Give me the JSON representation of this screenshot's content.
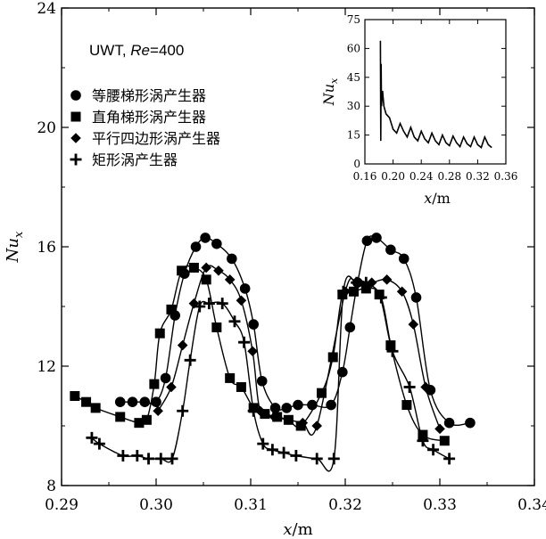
{
  "chart_data": {
    "type": "line",
    "annotation": {
      "prefix": "UWT, ",
      "re_italic": "Re",
      "re_value": "=400"
    },
    "xlabel": {
      "var": "x",
      "unit": "/m"
    },
    "ylabel": {
      "base": "Nu",
      "sub": "x"
    },
    "xlim": [
      0.29,
      0.34
    ],
    "ylim": [
      8,
      24
    ],
    "xticks": [
      0.29,
      0.3,
      0.31,
      0.32,
      0.33,
      0.34
    ],
    "xtick_labels": [
      "0.29",
      "0.30",
      "0.31",
      "0.32",
      "0.33",
      "0.34"
    ],
    "yticks": [
      8,
      12,
      16,
      20,
      24
    ],
    "ytick_labels": [
      "8",
      "12",
      "16",
      "20",
      "24"
    ],
    "grid": false,
    "legend_position": "top-left",
    "series": [
      {
        "name": "等腰梯形涡产生器",
        "marker": "circle",
        "points": [
          [
            0.2962,
            10.8
          ],
          [
            0.2975,
            10.8
          ],
          [
            0.2988,
            10.8
          ],
          [
            0.3,
            10.8
          ],
          [
            0.301,
            11.6
          ],
          [
            0.302,
            13.7
          ],
          [
            0.303,
            15.1
          ],
          [
            0.3042,
            16.0
          ],
          [
            0.3052,
            16.3
          ],
          [
            0.3064,
            16.1
          ],
          [
            0.308,
            15.6
          ],
          [
            0.3094,
            14.6
          ],
          [
            0.3103,
            13.4
          ],
          [
            0.3112,
            11.5
          ],
          [
            0.3126,
            10.6
          ],
          [
            0.3138,
            10.6
          ],
          [
            0.315,
            10.7
          ],
          [
            0.3165,
            10.7
          ],
          [
            0.3185,
            10.7
          ],
          [
            0.3197,
            11.8
          ],
          [
            0.3205,
            13.3
          ],
          [
            0.3213,
            14.8
          ],
          [
            0.3223,
            16.2
          ],
          [
            0.3233,
            16.3
          ],
          [
            0.3248,
            15.9
          ],
          [
            0.3262,
            15.6
          ],
          [
            0.3275,
            14.3
          ],
          [
            0.329,
            11.2
          ],
          [
            0.331,
            10.1
          ],
          [
            0.3332,
            10.1
          ]
        ]
      },
      {
        "name": "直角梯形涡产生器",
        "marker": "square",
        "points": [
          [
            0.2914,
            11.0
          ],
          [
            0.2926,
            10.8
          ],
          [
            0.2936,
            10.6
          ],
          [
            0.2962,
            10.3
          ],
          [
            0.2982,
            10.1
          ],
          [
            0.299,
            10.2
          ],
          [
            0.2998,
            11.4
          ],
          [
            0.3004,
            13.1
          ],
          [
            0.3016,
            13.9
          ],
          [
            0.3027,
            15.2
          ],
          [
            0.304,
            15.3
          ],
          [
            0.3053,
            14.9
          ],
          [
            0.3064,
            13.3
          ],
          [
            0.3078,
            11.6
          ],
          [
            0.309,
            11.3
          ],
          [
            0.3103,
            10.6
          ],
          [
            0.3115,
            10.4
          ],
          [
            0.3128,
            10.3
          ],
          [
            0.314,
            10.2
          ],
          [
            0.3153,
            10.0
          ],
          [
            0.3175,
            11.1
          ],
          [
            0.3187,
            12.3
          ],
          [
            0.3197,
            14.4
          ],
          [
            0.3209,
            14.5
          ],
          [
            0.3222,
            14.6
          ],
          [
            0.3236,
            14.4
          ],
          [
            0.3248,
            12.7
          ],
          [
            0.3265,
            10.7
          ],
          [
            0.3282,
            9.7
          ],
          [
            0.3305,
            9.5
          ]
        ]
      },
      {
        "name": "平行四边形涡产生器",
        "marker": "diamond",
        "points": [
          [
            0.3002,
            10.5
          ],
          [
            0.3016,
            11.3
          ],
          [
            0.3028,
            12.7
          ],
          [
            0.304,
            14.1
          ],
          [
            0.3053,
            15.3
          ],
          [
            0.3066,
            15.2
          ],
          [
            0.3078,
            14.9
          ],
          [
            0.309,
            14.2
          ],
          [
            0.3102,
            12.5
          ],
          [
            0.311,
            10.5
          ],
          [
            0.3125,
            10.3
          ],
          [
            0.314,
            10.2
          ],
          [
            0.3155,
            10.1
          ],
          [
            0.317,
            10.0
          ],
          [
            0.32,
            14.5
          ],
          [
            0.3212,
            14.8
          ],
          [
            0.3228,
            14.8
          ],
          [
            0.3244,
            14.9
          ],
          [
            0.326,
            14.5
          ],
          [
            0.3272,
            13.4
          ],
          [
            0.3285,
            11.3
          ],
          [
            0.33,
            9.9
          ]
        ]
      },
      {
        "name": "矩形涡产生器",
        "marker": "plus",
        "points": [
          [
            0.2932,
            9.6
          ],
          [
            0.294,
            9.4
          ],
          [
            0.2965,
            9.0
          ],
          [
            0.298,
            9.0
          ],
          [
            0.2992,
            8.9
          ],
          [
            0.3005,
            8.9
          ],
          [
            0.3017,
            8.9
          ],
          [
            0.3028,
            10.5
          ],
          [
            0.3036,
            12.2
          ],
          [
            0.3046,
            14.0
          ],
          [
            0.3056,
            14.1
          ],
          [
            0.307,
            14.1
          ],
          [
            0.3083,
            13.5
          ],
          [
            0.3093,
            12.8
          ],
          [
            0.3103,
            10.5
          ],
          [
            0.3113,
            9.4
          ],
          [
            0.3123,
            9.2
          ],
          [
            0.3135,
            9.1
          ],
          [
            0.3148,
            9.0
          ],
          [
            0.317,
            8.9
          ],
          [
            0.3188,
            8.9
          ],
          [
            0.3198,
            14.5
          ],
          [
            0.3212,
            14.8
          ],
          [
            0.3222,
            14.8
          ],
          [
            0.3238,
            14.3
          ],
          [
            0.325,
            12.5
          ],
          [
            0.3268,
            11.3
          ],
          [
            0.3282,
            9.5
          ],
          [
            0.3293,
            9.2
          ],
          [
            0.331,
            8.9
          ]
        ]
      }
    ],
    "inset": {
      "xlabel": {
        "var": "x",
        "unit": "/m"
      },
      "ylabel": {
        "base": "Nu",
        "sub": "x"
      },
      "xlim": [
        0.16,
        0.36
      ],
      "ylim": [
        0,
        75
      ],
      "xticks": [
        0.16,
        0.2,
        0.24,
        0.28,
        0.32,
        0.36
      ],
      "xtick_labels": [
        "0.16",
        "0.20",
        "0.24",
        "0.28",
        "0.32",
        "0.36"
      ],
      "yticks": [
        0,
        15,
        30,
        45,
        60,
        75
      ],
      "ytick_labels": [
        "0",
        "15",
        "30",
        "45",
        "60",
        "75"
      ],
      "curve_note": "entrance peak near x=0.18 then decaying periodic oscillation",
      "curve": [
        [
          0.182,
          64
        ],
        [
          0.1825,
          12
        ],
        [
          0.183,
          52
        ],
        [
          0.1835,
          30
        ],
        [
          0.185,
          38
        ],
        [
          0.187,
          30
        ],
        [
          0.19,
          26
        ],
        [
          0.195,
          24
        ],
        [
          0.2,
          18
        ],
        [
          0.205,
          16
        ],
        [
          0.21,
          21
        ],
        [
          0.215,
          17
        ],
        [
          0.22,
          14
        ],
        [
          0.225,
          19
        ],
        [
          0.23,
          14
        ],
        [
          0.235,
          12
        ],
        [
          0.24,
          17
        ],
        [
          0.245,
          13
        ],
        [
          0.25,
          11
        ],
        [
          0.255,
          16
        ],
        [
          0.26,
          12
        ],
        [
          0.265,
          10
        ],
        [
          0.27,
          15
        ],
        [
          0.275,
          11
        ],
        [
          0.28,
          9.5
        ],
        [
          0.285,
          14.5
        ],
        [
          0.29,
          11
        ],
        [
          0.295,
          9
        ],
        [
          0.3,
          14
        ],
        [
          0.305,
          10.5
        ],
        [
          0.31,
          9
        ],
        [
          0.315,
          14
        ],
        [
          0.32,
          10
        ],
        [
          0.325,
          8.5
        ],
        [
          0.33,
          14
        ],
        [
          0.335,
          10
        ],
        [
          0.34,
          8.5
        ]
      ]
    }
  }
}
